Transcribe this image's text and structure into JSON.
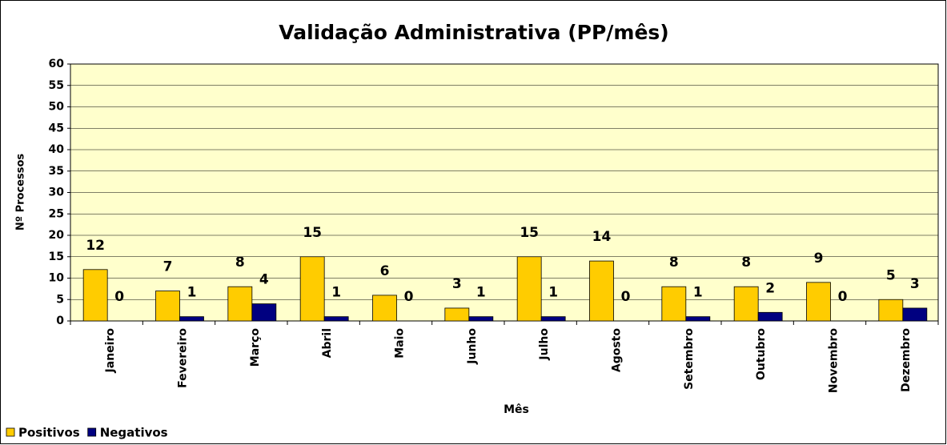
{
  "chart_data": {
    "type": "bar",
    "title": "Validação Administrativa (PP/mês)",
    "x_label": "Mês",
    "y_label": "Nº Processos",
    "categories": [
      "Janeiro",
      "Fevereiro",
      "Março",
      "Abril",
      "Maio",
      "Junho",
      "Julho",
      "Agosto",
      "Setembro",
      "Outubro",
      "Novembro",
      "Dezembro"
    ],
    "series": [
      {
        "name": "Positivos",
        "color": "#FFCC00",
        "values": [
          12,
          7,
          8,
          15,
          6,
          3,
          15,
          14,
          8,
          8,
          9,
          5
        ]
      },
      {
        "name": "Negativos",
        "color": "#000080",
        "values": [
          0,
          1,
          4,
          1,
          0,
          1,
          1,
          0,
          1,
          2,
          0,
          3
        ]
      }
    ],
    "ylim": [
      0,
      60
    ],
    "yticks": [
      0,
      5,
      10,
      15,
      20,
      25,
      30,
      35,
      40,
      45,
      50,
      55,
      60
    ],
    "grid": true,
    "legend": "bottom-left",
    "plot_background": "#FFFFCC"
  }
}
